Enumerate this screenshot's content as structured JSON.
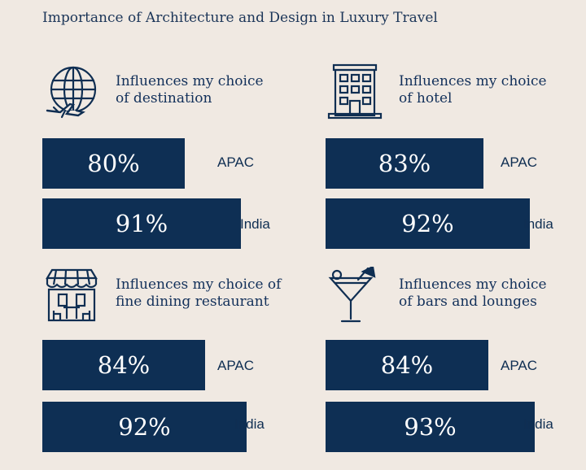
{
  "title": "Importance of Architecture and Design in Luxury Travel",
  "colors": {
    "background": "#f0e9e2",
    "bar": "#0e2f54",
    "text": "#0f2e52"
  },
  "chart_data": [
    {
      "type": "bar",
      "orientation": "horizontal",
      "icon": "globe-plane-icon",
      "title_lines": [
        "Influences my choice",
        "of destination"
      ],
      "categories": [
        "APAC",
        "India"
      ],
      "values": [
        80,
        91
      ],
      "labels": [
        "80%",
        "91%"
      ],
      "xlim": [
        0,
        100
      ]
    },
    {
      "type": "bar",
      "orientation": "horizontal",
      "icon": "hotel-building-icon",
      "title_lines": [
        "Influences my choice",
        "of hotel"
      ],
      "categories": [
        "APAC",
        "India"
      ],
      "values": [
        83,
        92
      ],
      "labels": [
        "83%",
        "92%"
      ],
      "xlim": [
        0,
        100
      ]
    },
    {
      "type": "bar",
      "orientation": "horizontal",
      "icon": "restaurant-storefront-icon",
      "title_lines": [
        "Influences my choice of",
        "fine dining restaurant"
      ],
      "categories": [
        "APAC",
        "India"
      ],
      "values": [
        84,
        92
      ],
      "labels": [
        "84%",
        "92%"
      ],
      "xlim": [
        0,
        100
      ]
    },
    {
      "type": "bar",
      "orientation": "horizontal",
      "icon": "cocktail-glass-icon",
      "title_lines": [
        "Influences my choice",
        "of bars and lounges"
      ],
      "categories": [
        "APAC",
        "India"
      ],
      "values": [
        84,
        93
      ],
      "labels": [
        "84%",
        "93%"
      ],
      "xlim": [
        0,
        100
      ]
    }
  ]
}
